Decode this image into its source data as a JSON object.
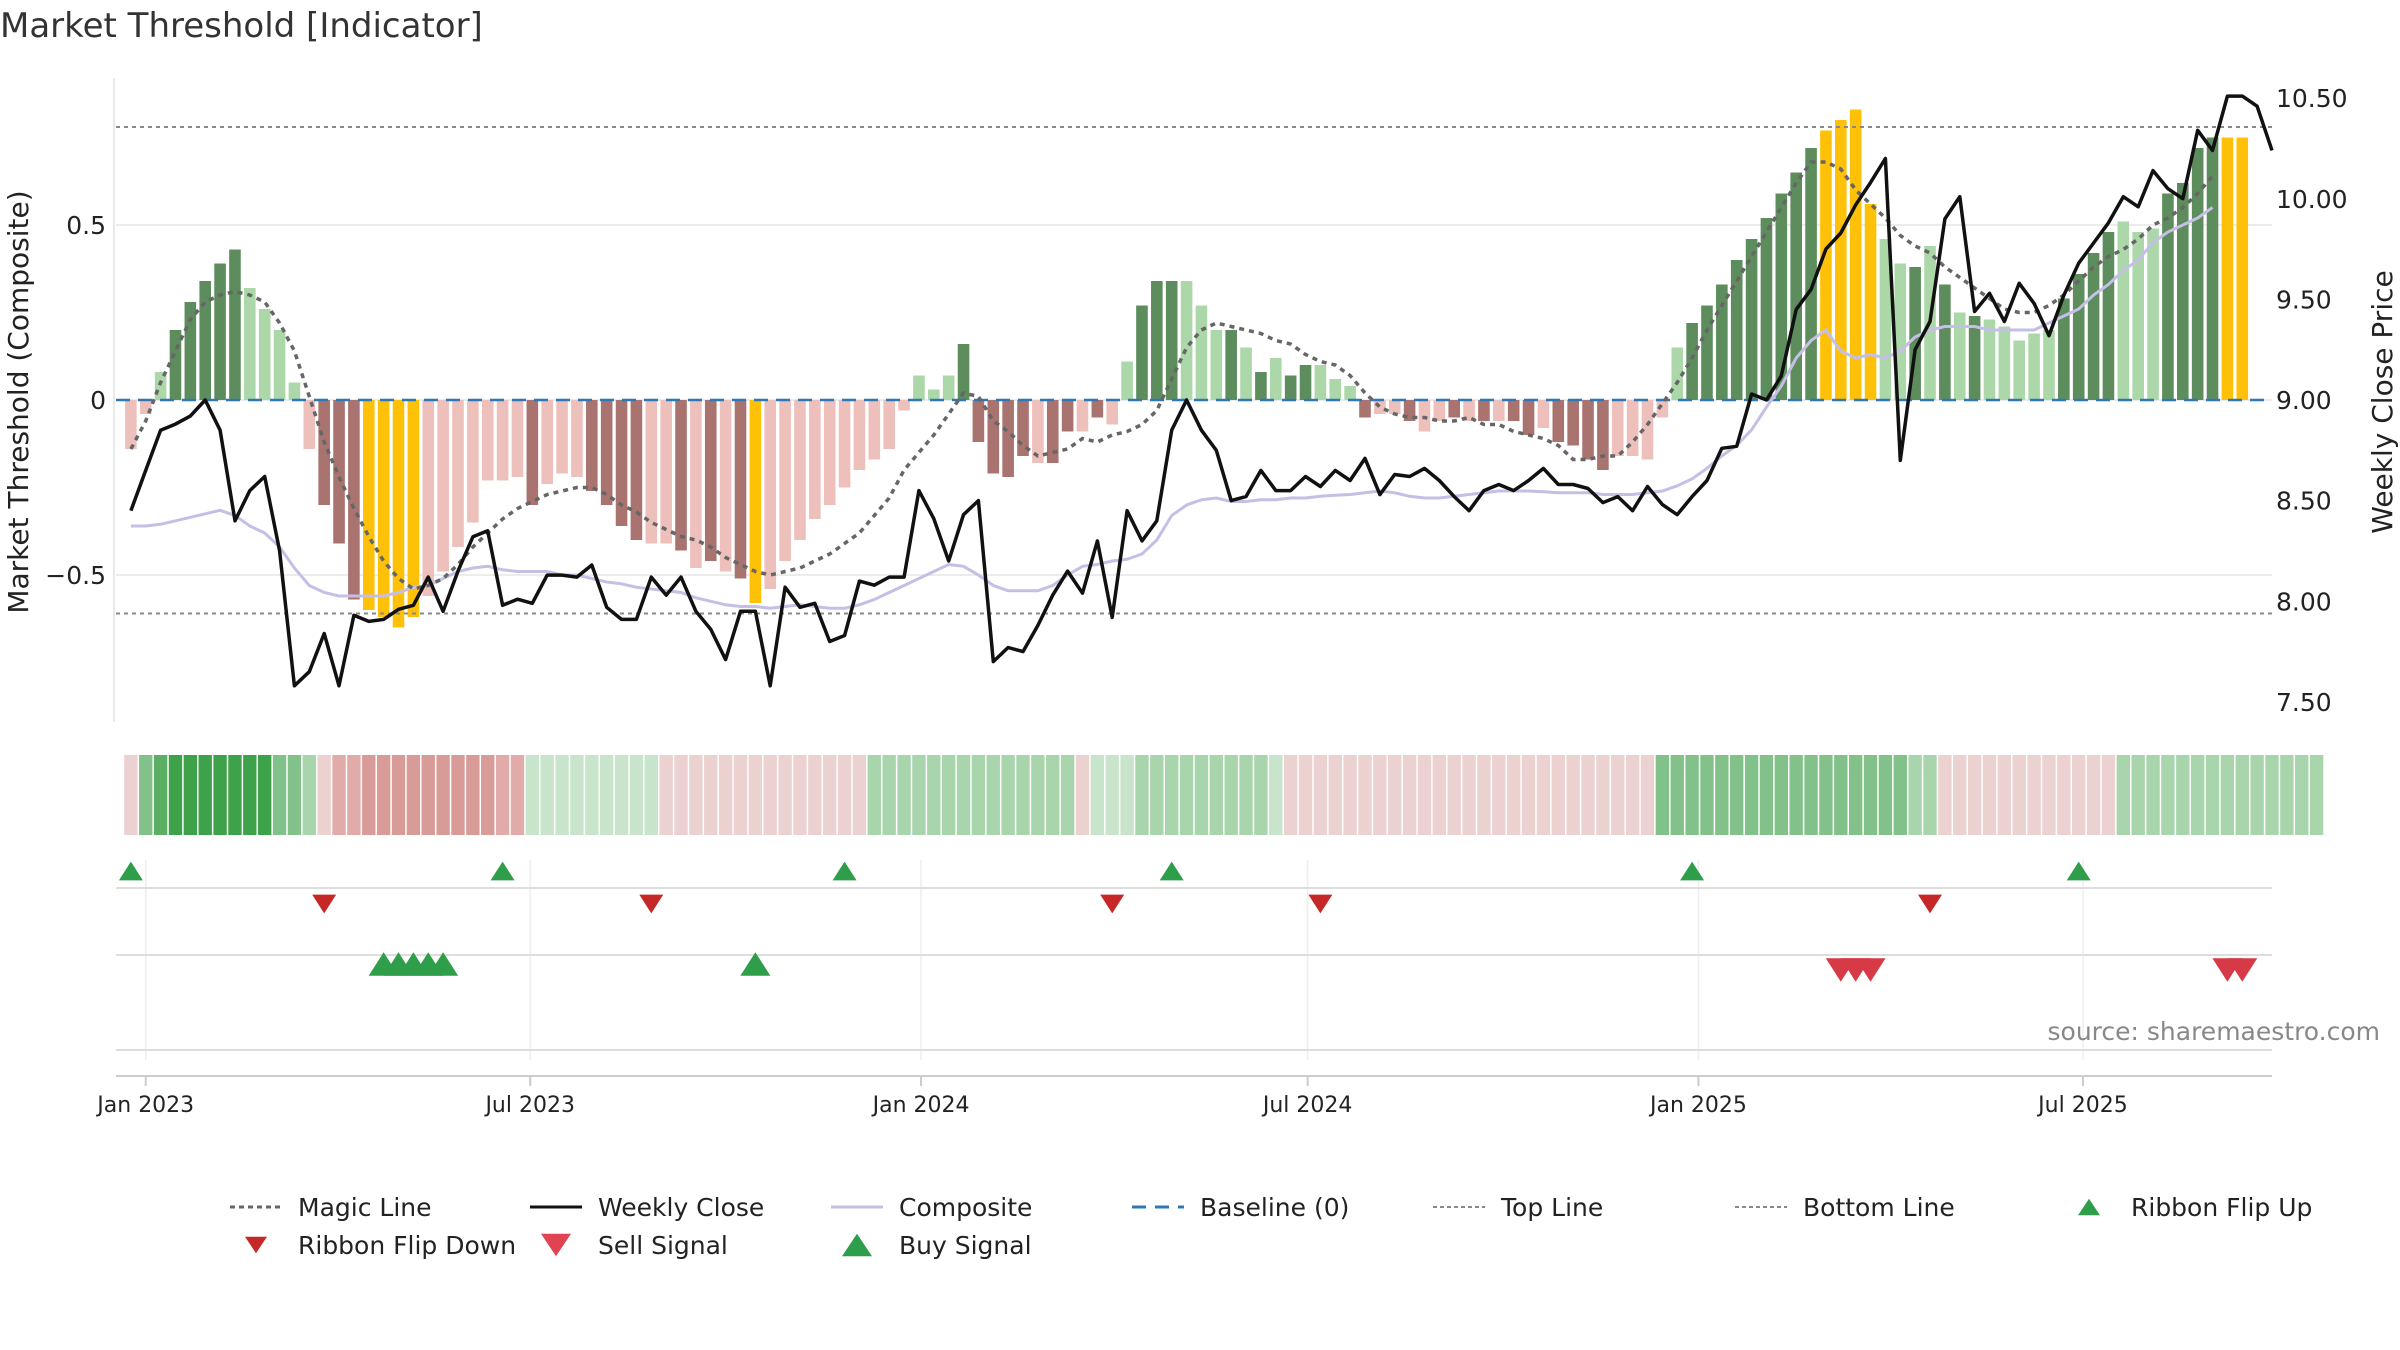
{
  "title": "Market Threshold [Indicator]",
  "source": "source: sharemaestro.com",
  "chart_data": {
    "type": "bar",
    "ylabel_left": "Market Threshold (Composite)",
    "ylabel_right": "Weekly Close Price",
    "ylim_left": [
      -0.92,
      0.92
    ],
    "ylim_right": [
      7.4,
      10.6
    ],
    "left_ticks": [
      0.5,
      0,
      -0.5
    ],
    "left_tick_labels": [
      "0.5",
      "0",
      "−0.5"
    ],
    "right_ticks": [
      10.5,
      10.0,
      9.5,
      9.0,
      8.5,
      8.0,
      7.5
    ],
    "right_tick_labels": [
      "10.50",
      "10.00",
      "9.50",
      "9.00",
      "8.50",
      "8.00",
      "7.50"
    ],
    "x_ticks": [
      "2023-01-01",
      "2023-07-01",
      "2024-01-01",
      "2024-07-01",
      "2025-01-01",
      "2025-07-01"
    ],
    "x_tick_labels": [
      "Jan 2023",
      "Jul 2023",
      "Jan 2024",
      "Jul 2024",
      "Jan 2025",
      "Jul 2025"
    ],
    "x_range": [
      "2022-12-18",
      "2025-09-28"
    ],
    "series_start": "2022-12-25",
    "week_step_days": 7,
    "top_line": 0.78,
    "bottom_line": -0.61,
    "colors": {
      "strong_pos": "#5d8c5d",
      "weak_pos": "#acd7a8",
      "strong_neg": "#a97470",
      "weak_neg": "#eec0bc",
      "extreme": "#ffc107",
      "close": "#111111",
      "composite": "#c5bfe6",
      "magic": "#666666",
      "baseline": "#2f78b5",
      "buy": "#2e9e4a",
      "sell": "#d63a46",
      "grid": "#e6e6e6"
    },
    "composite_bars": [
      -0.14,
      -0.04,
      0.08,
      0.2,
      0.28,
      0.34,
      0.39,
      0.43,
      0.32,
      0.26,
      0.2,
      0.05,
      -0.14,
      -0.3,
      -0.41,
      -0.57,
      -0.6,
      -0.62,
      -0.65,
      -0.62,
      -0.56,
      -0.49,
      -0.42,
      -0.35,
      -0.23,
      -0.23,
      -0.22,
      -0.3,
      -0.24,
      -0.21,
      -0.22,
      -0.26,
      -0.3,
      -0.36,
      -0.4,
      -0.41,
      -0.41,
      -0.43,
      -0.48,
      -0.46,
      -0.49,
      -0.51,
      -0.58,
      -0.54,
      -0.46,
      -0.4,
      -0.34,
      -0.3,
      -0.25,
      -0.2,
      -0.17,
      -0.14,
      -0.03,
      0.07,
      0.03,
      0.07,
      0.16,
      -0.12,
      -0.21,
      -0.22,
      -0.16,
      -0.18,
      -0.18,
      -0.09,
      -0.09,
      -0.05,
      -0.07,
      0.11,
      0.27,
      0.34,
      0.34,
      0.34,
      0.27,
      0.2,
      0.2,
      0.15,
      0.08,
      0.12,
      0.07,
      0.1,
      0.1,
      0.06,
      0.04,
      -0.05,
      -0.04,
      -0.04,
      -0.06,
      -0.09,
      -0.06,
      -0.05,
      -0.06,
      -0.06,
      -0.06,
      -0.06,
      -0.1,
      -0.08,
      -0.12,
      -0.13,
      -0.17,
      -0.2,
      -0.16,
      -0.16,
      -0.17,
      -0.05,
      0.15,
      0.22,
      0.27,
      0.33,
      0.4,
      0.46,
      0.52,
      0.59,
      0.65,
      0.72,
      0.77,
      0.8,
      0.83,
      0.56,
      0.46,
      0.39,
      0.38,
      0.44,
      0.33,
      0.25,
      0.24,
      0.23,
      0.21,
      0.17,
      0.19,
      0.2,
      0.29,
      0.36,
      0.42,
      0.48,
      0.51,
      0.48,
      0.49,
      0.59,
      0.62,
      0.72,
      0.75,
      0.75,
      0.75
    ],
    "bar_intensity": [
      "w",
      "w",
      "w",
      "s",
      "s",
      "s",
      "s",
      "s",
      "w",
      "w",
      "w",
      "w",
      "w",
      "s",
      "s",
      "s",
      "y",
      "y",
      "y",
      "y",
      "w",
      "w",
      "w",
      "w",
      "w",
      "w",
      "w",
      "s",
      "w",
      "w",
      "w",
      "s",
      "s",
      "s",
      "s",
      "w",
      "w",
      "s",
      "w",
      "s",
      "w",
      "s",
      "y",
      "w",
      "w",
      "w",
      "w",
      "w",
      "w",
      "w",
      "w",
      "w",
      "w",
      "w",
      "w",
      "w",
      "s",
      "s",
      "s",
      "s",
      "s",
      "w",
      "s",
      "s",
      "w",
      "s",
      "w",
      "w",
      "s",
      "s",
      "s",
      "w",
      "w",
      "w",
      "s",
      "w",
      "s",
      "w",
      "s",
      "s",
      "w",
      "w",
      "w",
      "s",
      "w",
      "w",
      "s",
      "w",
      "w",
      "s",
      "w",
      "s",
      "w",
      "s",
      "s",
      "w",
      "s",
      "s",
      "s",
      "s",
      "w",
      "w",
      "w",
      "w",
      "w",
      "s",
      "s",
      "s",
      "s",
      "s",
      "s",
      "s",
      "s",
      "s",
      "y",
      "y",
      "y",
      "y",
      "w",
      "w",
      "s",
      "w",
      "s",
      "w",
      "s",
      "w",
      "w",
      "w",
      "w",
      "w",
      "s",
      "s",
      "s",
      "s",
      "w",
      "w",
      "w",
      "s",
      "s",
      "s",
      "s",
      "y",
      "y",
      "w"
    ],
    "weekly_close": [
      8.45,
      8.65,
      8.85,
      8.88,
      8.92,
      9.0,
      8.85,
      8.4,
      8.55,
      8.62,
      8.25,
      7.58,
      7.65,
      7.84,
      7.58,
      7.93,
      7.9,
      7.91,
      7.96,
      7.98,
      8.12,
      7.95,
      8.15,
      8.32,
      8.35,
      7.98,
      8.01,
      7.99,
      8.13,
      8.13,
      8.12,
      8.18,
      7.97,
      7.91,
      7.91,
      8.12,
      8.03,
      8.12,
      7.95,
      7.86,
      7.71,
      7.95,
      7.95,
      7.58,
      8.07,
      7.97,
      7.99,
      7.8,
      7.83,
      8.1,
      8.08,
      8.12,
      8.12,
      8.55,
      8.41,
      8.2,
      8.43,
      8.5,
      7.7,
      7.77,
      7.75,
      7.88,
      8.03,
      8.15,
      8.04,
      8.3,
      7.92,
      8.45,
      8.3,
      8.4,
      8.85,
      9.0,
      8.85,
      8.75,
      8.5,
      8.52,
      8.65,
      8.55,
      8.55,
      8.62,
      8.57,
      8.65,
      8.6,
      8.71,
      8.53,
      8.63,
      8.62,
      8.66,
      8.6,
      8.52,
      8.45,
      8.55,
      8.58,
      8.55,
      8.6,
      8.66,
      8.58,
      8.58,
      8.56,
      8.49,
      8.52,
      8.45,
      8.57,
      8.48,
      8.43,
      8.52,
      8.6,
      8.76,
      8.77,
      9.03,
      9.0,
      9.12,
      9.45,
      9.55,
      9.75,
      9.83,
      9.97,
      10.08,
      10.2,
      8.7,
      9.25,
      9.39,
      9.9,
      10.01,
      9.44,
      9.53,
      9.39,
      9.58,
      9.48,
      9.32,
      9.52,
      9.68,
      9.78,
      9.88,
      10.01,
      9.96,
      10.14,
      10.05,
      10.0,
      10.34,
      10.24,
      10.51,
      10.51,
      10.46,
      10.24
    ],
    "composite_line": [
      -0.36,
      -0.36,
      -0.355,
      -0.345,
      -0.335,
      -0.325,
      -0.315,
      -0.33,
      -0.36,
      -0.38,
      -0.42,
      -0.48,
      -0.53,
      -0.55,
      -0.56,
      -0.56,
      -0.56,
      -0.56,
      -0.55,
      -0.535,
      -0.53,
      -0.51,
      -0.49,
      -0.48,
      -0.475,
      -0.485,
      -0.49,
      -0.49,
      -0.49,
      -0.5,
      -0.5,
      -0.51,
      -0.52,
      -0.525,
      -0.535,
      -0.54,
      -0.545,
      -0.55,
      -0.565,
      -0.575,
      -0.585,
      -0.59,
      -0.59,
      -0.595,
      -0.59,
      -0.585,
      -0.59,
      -0.595,
      -0.595,
      -0.585,
      -0.57,
      -0.55,
      -0.53,
      -0.51,
      -0.49,
      -0.47,
      -0.475,
      -0.5,
      -0.53,
      -0.545,
      -0.545,
      -0.545,
      -0.53,
      -0.5,
      -0.475,
      -0.47,
      -0.46,
      -0.455,
      -0.44,
      -0.4,
      -0.33,
      -0.3,
      -0.285,
      -0.28,
      -0.29,
      -0.29,
      -0.285,
      -0.285,
      -0.28,
      -0.28,
      -0.275,
      -0.272,
      -0.27,
      -0.265,
      -0.26,
      -0.265,
      -0.275,
      -0.28,
      -0.28,
      -0.275,
      -0.27,
      -0.265,
      -0.26,
      -0.26,
      -0.26,
      -0.262,
      -0.265,
      -0.265,
      -0.265,
      -0.27,
      -0.27,
      -0.27,
      -0.265,
      -0.26,
      -0.245,
      -0.225,
      -0.195,
      -0.16,
      -0.13,
      -0.085,
      -0.02,
      0.04,
      0.12,
      0.17,
      0.2,
      0.14,
      0.12,
      0.13,
      0.12,
      0.14,
      0.18,
      0.2,
      0.21,
      0.21,
      0.21,
      0.2,
      0.2,
      0.2,
      0.2,
      0.22,
      0.24,
      0.26,
      0.3,
      0.33,
      0.37,
      0.4,
      0.45,
      0.48,
      0.5,
      0.52,
      0.55
    ],
    "magic_line": [
      -0.14,
      -0.06,
      0.05,
      0.14,
      0.23,
      0.28,
      0.3,
      0.31,
      0.3,
      0.28,
      0.22,
      0.14,
      0.01,
      -0.12,
      -0.22,
      -0.31,
      -0.39,
      -0.46,
      -0.51,
      -0.54,
      -0.53,
      -0.51,
      -0.47,
      -0.42,
      -0.38,
      -0.34,
      -0.31,
      -0.29,
      -0.27,
      -0.26,
      -0.25,
      -0.25,
      -0.27,
      -0.3,
      -0.32,
      -0.35,
      -0.37,
      -0.39,
      -0.4,
      -0.42,
      -0.45,
      -0.47,
      -0.49,
      -0.5,
      -0.49,
      -0.48,
      -0.46,
      -0.44,
      -0.41,
      -0.38,
      -0.33,
      -0.28,
      -0.2,
      -0.15,
      -0.1,
      -0.04,
      0.02,
      0.01,
      -0.06,
      -0.09,
      -0.13,
      -0.16,
      -0.15,
      -0.14,
      -0.11,
      -0.12,
      -0.1,
      -0.09,
      -0.07,
      -0.03,
      0.06,
      0.15,
      0.2,
      0.22,
      0.21,
      0.2,
      0.19,
      0.17,
      0.16,
      0.13,
      0.11,
      0.1,
      0.07,
      0.02,
      -0.02,
      -0.04,
      -0.05,
      -0.05,
      -0.06,
      -0.06,
      -0.05,
      -0.07,
      -0.07,
      -0.09,
      -0.1,
      -0.11,
      -0.13,
      -0.17,
      -0.17,
      -0.16,
      -0.16,
      -0.12,
      -0.07,
      -0.01,
      0.05,
      0.12,
      0.2,
      0.27,
      0.34,
      0.41,
      0.48,
      0.55,
      0.62,
      0.68,
      0.68,
      0.66,
      0.6,
      0.56,
      0.52,
      0.47,
      0.44,
      0.42,
      0.38,
      0.35,
      0.32,
      0.29,
      0.26,
      0.25,
      0.25,
      0.27,
      0.3,
      0.34,
      0.38,
      0.41,
      0.43,
      0.46,
      0.5,
      0.52,
      0.55,
      0.59,
      0.64
    ],
    "ribbon_colors": [
      "#ebd1d0",
      "#82c28a",
      "#5cae64",
      "#3ea24a",
      "#3ea24a",
      "#3ea24a",
      "#3ea24a",
      "#3ea24a",
      "#3ea24a",
      "#3ea24a",
      "#82c28a",
      "#82c28a",
      "#a9d5ad",
      "#ebd1d0",
      "#e0aba8",
      "#e0aba8",
      "#d99b98",
      "#d99b98",
      "#d99b98",
      "#d99b98",
      "#d99b98",
      "#d99b98",
      "#d99b98",
      "#d99b98",
      "#d99b98",
      "#e0aba8",
      "#e0aba8",
      "#c8e5cb",
      "#c8e5cb",
      "#c8e5cb",
      "#c8e5cb",
      "#c8e5cb",
      "#c8e5cb",
      "#c8e5cb",
      "#c8e5cb",
      "#c8e5cb",
      "#ebd1d0",
      "#ebd1d0",
      "#ebd1d0",
      "#ebd1d0",
      "#ebd1d0",
      "#ebd1d0",
      "#ebd1d0",
      "#ebd1d0",
      "#ebd1d0",
      "#ebd1d0",
      "#ebd1d0",
      "#ebd1d0",
      "#ebd1d0",
      "#ebd1d0",
      "#a9d5ad",
      "#a9d5ad",
      "#a9d5ad",
      "#a9d5ad",
      "#a9d5ad",
      "#a9d5ad",
      "#a9d5ad",
      "#a9d5ad",
      "#a9d5ad",
      "#a9d5ad",
      "#a9d5ad",
      "#a9d5ad",
      "#a9d5ad",
      "#a9d5ad",
      "#ebd1d0",
      "#c8e5cb",
      "#c8e5cb",
      "#c8e5cb",
      "#a9d5ad",
      "#a9d5ad",
      "#a9d5ad",
      "#a9d5ad",
      "#a9d5ad",
      "#a9d5ad",
      "#a9d5ad",
      "#a9d5ad",
      "#a9d5ad",
      "#c8e5cb",
      "#ebd1d0",
      "#ebd1d0",
      "#ebd1d0",
      "#ebd1d0",
      "#ebd1d0",
      "#ebd1d0",
      "#ebd1d0",
      "#ebd1d0",
      "#ebd1d0",
      "#ebd1d0",
      "#ebd1d0",
      "#ebd1d0",
      "#ebd1d0",
      "#ebd1d0",
      "#ebd1d0",
      "#ebd1d0",
      "#ebd1d0",
      "#ebd1d0",
      "#ebd1d0",
      "#ebd1d0",
      "#ebd1d0",
      "#ebd1d0",
      "#ebd1d0",
      "#ebd1d0",
      "#ebd1d0",
      "#82c28a",
      "#82c28a",
      "#82c28a",
      "#82c28a",
      "#82c28a",
      "#82c28a",
      "#82c28a",
      "#82c28a",
      "#82c28a",
      "#82c28a",
      "#82c28a",
      "#82c28a",
      "#82c28a",
      "#82c28a",
      "#82c28a",
      "#82c28a",
      "#82c28a",
      "#a9d5ad",
      "#a9d5ad",
      "#ebd1d0",
      "#ebd1d0",
      "#ebd1d0",
      "#ebd1d0",
      "#ebd1d0",
      "#ebd1d0",
      "#ebd1d0",
      "#ebd1d0",
      "#ebd1d0",
      "#ebd1d0",
      "#ebd1d0",
      "#ebd1d0",
      "#a9d5ad",
      "#a9d5ad",
      "#a9d5ad",
      "#a9d5ad",
      "#a9d5ad",
      "#a9d5ad",
      "#a9d5ad",
      "#a9d5ad",
      "#a9d5ad",
      "#a9d5ad",
      "#a9d5ad",
      "#a9d5ad",
      "#a9d5ad",
      "#a9d5ad"
    ],
    "ribbon_flip_up_dates": [
      "2022-12-25",
      "2023-06-18",
      "2023-11-26",
      "2024-04-28",
      "2024-12-29",
      "2025-06-29"
    ],
    "ribbon_flip_down_dates": [
      "2023-03-26",
      "2023-08-27",
      "2024-03-31",
      "2024-07-07",
      "2025-04-20"
    ],
    "buy_signal_dates": [
      "2023-04-23",
      "2023-04-30",
      "2023-05-07",
      "2023-05-14",
      "2023-05-21",
      "2023-10-15"
    ],
    "sell_signal_dates": [
      "2025-03-09",
      "2025-03-16",
      "2025-03-23",
      "2025-09-07",
      "2025-09-14"
    ]
  },
  "legend": [
    {
      "label": "Magic Line",
      "kind": "dotted",
      "color": "#666666"
    },
    {
      "label": "Weekly Close",
      "kind": "solid",
      "color": "#111111"
    },
    {
      "label": "Composite",
      "kind": "solid",
      "color": "#c5bfe6"
    },
    {
      "label": "Baseline (0)",
      "kind": "dashed",
      "color": "#2f78b5"
    },
    {
      "label": "Top Line",
      "kind": "dotted-fine",
      "color": "#888888"
    },
    {
      "label": "Bottom Line",
      "kind": "dotted-fine",
      "color": "#888888"
    },
    {
      "label": "Ribbon Flip Up",
      "kind": "tri-up",
      "color": "#2e9e4a"
    },
    {
      "label": "Ribbon Flip Down",
      "kind": "tri-down",
      "color": "#c62828"
    },
    {
      "label": "Sell Signal",
      "kind": "tri-down-big",
      "color": "#e04452"
    },
    {
      "label": "Buy Signal",
      "kind": "tri-up-big",
      "color": "#2e9e4a"
    }
  ]
}
